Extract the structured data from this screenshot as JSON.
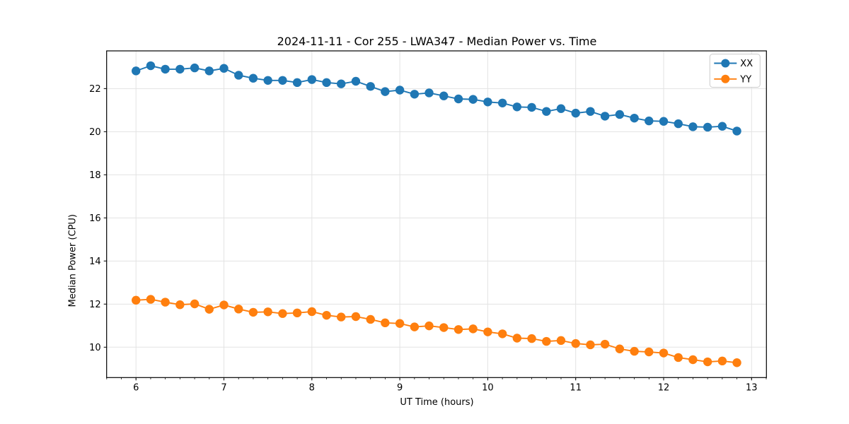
{
  "chart_data": {
    "type": "line",
    "title": "2024-11-11 - Cor 255 - LWA347 - Median Power vs. Time",
    "xlabel": "UT Time (hours)",
    "ylabel": "Median Power (CPU)",
    "xlim": [
      5.666,
      13.169
    ],
    "ylim": [
      8.59,
      23.75
    ],
    "xticks": [
      6,
      7,
      8,
      9,
      10,
      11,
      12,
      13
    ],
    "yticks": [
      10,
      12,
      14,
      16,
      18,
      20,
      22
    ],
    "x_minor_interval": 0.166667,
    "grid": true,
    "legend_position": "upper right",
    "marker": "circle",
    "x": [
      6.0,
      6.167,
      6.333,
      6.5,
      6.667,
      6.833,
      7.0,
      7.167,
      7.333,
      7.5,
      7.667,
      7.833,
      8.0,
      8.167,
      8.333,
      8.5,
      8.667,
      8.833,
      9.0,
      9.167,
      9.333,
      9.5,
      9.667,
      9.833,
      10.0,
      10.167,
      10.333,
      10.5,
      10.667,
      10.833,
      11.0,
      11.167,
      11.333,
      11.5,
      11.667,
      11.833,
      12.0,
      12.167,
      12.333,
      12.5,
      12.667,
      12.833
    ],
    "series": [
      {
        "name": "XX",
        "color": "#1f77b4",
        "values": [
          22.82,
          23.06,
          22.9,
          22.9,
          22.96,
          22.82,
          22.94,
          22.62,
          22.48,
          22.38,
          22.38,
          22.28,
          22.42,
          22.28,
          22.22,
          22.34,
          22.1,
          21.86,
          21.93,
          21.74,
          21.8,
          21.66,
          21.52,
          21.5,
          21.38,
          21.33,
          21.15,
          21.13,
          20.94,
          21.07,
          20.86,
          20.94,
          20.72,
          20.8,
          20.63,
          20.5,
          20.48,
          20.37,
          20.23,
          20.21,
          20.25,
          20.03
        ]
      },
      {
        "name": "YY",
        "color": "#ff7f0e",
        "values": [
          12.18,
          12.22,
          12.09,
          11.97,
          12.01,
          11.76,
          11.96,
          11.77,
          11.62,
          11.64,
          11.56,
          11.59,
          11.65,
          11.48,
          11.4,
          11.42,
          11.29,
          11.13,
          11.1,
          10.94,
          10.99,
          10.91,
          10.82,
          10.85,
          10.71,
          10.62,
          10.42,
          10.4,
          10.27,
          10.31,
          10.17,
          10.11,
          10.14,
          9.92,
          9.81,
          9.78,
          9.73,
          9.52,
          9.42,
          9.32,
          9.36,
          9.28
        ]
      }
    ]
  },
  "colors": {
    "background": "#ffffff",
    "grid": "#e3e3e3",
    "spine": "#000000",
    "tick_text": "#000000",
    "legend_border": "#cccccc"
  }
}
